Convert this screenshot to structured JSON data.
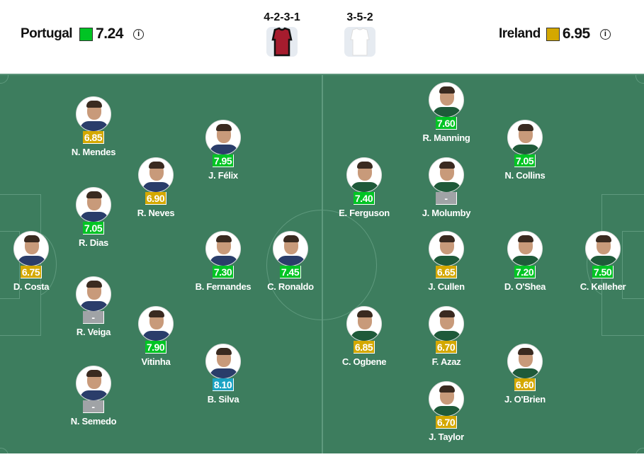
{
  "home": {
    "name": "Portugal",
    "rating": "7.24",
    "rating_color": "#00c424",
    "formation": "4-2-3-1",
    "kit_color": "#a61c2e"
  },
  "away": {
    "name": "Ireland",
    "rating": "6.95",
    "rating_color": "#d4a800",
    "formation": "3-5-2",
    "kit_color": "#ffffff"
  },
  "info_icon": "i",
  "rating_colors": {
    "green": "#00c424",
    "gold": "#d4a800",
    "blue": "#1aa3c4",
    "none": "#a0a3a6"
  },
  "players": [
    {
      "name": "D. Costa",
      "rating": "6.75",
      "color": "gold"
    },
    {
      "name": "N. Mendes",
      "rating": "6.85",
      "color": "gold"
    },
    {
      "name": "R. Dias",
      "rating": "7.05",
      "color": "green"
    },
    {
      "name": "R. Veiga",
      "rating": "-",
      "color": "none"
    },
    {
      "name": "N. Semedo",
      "rating": "-",
      "color": "none"
    },
    {
      "name": "R. Neves",
      "rating": "6.90",
      "color": "gold"
    },
    {
      "name": "Vitinha",
      "rating": "7.90",
      "color": "green"
    },
    {
      "name": "J. Félix",
      "rating": "7.95",
      "color": "green"
    },
    {
      "name": "B. Fernandes",
      "rating": "7.30",
      "color": "green"
    },
    {
      "name": "B. Silva",
      "rating": "8.10",
      "color": "blue"
    },
    {
      "name": "C. Ronaldo",
      "rating": "7.45",
      "color": "green"
    },
    {
      "name": "R. Manning",
      "rating": "7.60",
      "color": "green"
    },
    {
      "name": "N. Collins",
      "rating": "7.05",
      "color": "green"
    },
    {
      "name": "E. Ferguson",
      "rating": "7.40",
      "color": "green"
    },
    {
      "name": "J. Molumby",
      "rating": "-",
      "color": "none"
    },
    {
      "name": "J. Cullen",
      "rating": "6.65",
      "color": "gold"
    },
    {
      "name": "D. O'Shea",
      "rating": "7.20",
      "color": "green"
    },
    {
      "name": "C. Kelleher",
      "rating": "7.50",
      "color": "green"
    },
    {
      "name": "C. Ogbene",
      "rating": "6.85",
      "color": "gold"
    },
    {
      "name": "F. Azaz",
      "rating": "6.70",
      "color": "gold"
    },
    {
      "name": "J. O'Brien",
      "rating": "6.60",
      "color": "gold"
    },
    {
      "name": "J. Taylor",
      "rating": "6.70",
      "color": "gold"
    }
  ]
}
